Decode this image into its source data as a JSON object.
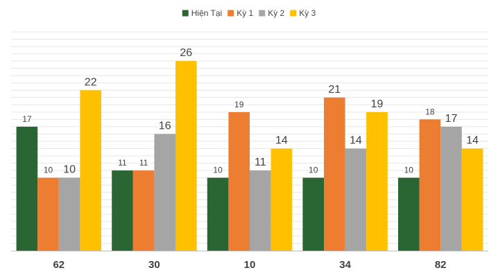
{
  "chart_data": {
    "type": "bar",
    "categories": [
      "62",
      "30",
      "10",
      "34",
      "82"
    ],
    "series": [
      {
        "name": "Hiện Tại",
        "color": "#2a6534",
        "values": [
          17,
          11,
          10,
          10,
          10
        ]
      },
      {
        "name": "Kỳ 1",
        "color": "#ed7d31",
        "values": [
          10,
          11,
          19,
          21,
          18
        ]
      },
      {
        "name": "Kỳ 2",
        "color": "#a5a5a5",
        "values": [
          10,
          16,
          11,
          14,
          17
        ]
      },
      {
        "name": "Kỳ 3",
        "color": "#ffc000",
        "values": [
          22,
          26,
          14,
          19,
          14
        ]
      }
    ],
    "ylim": [
      0,
      30
    ],
    "legend_position": "top-center",
    "grid": true,
    "axis_line_color": "#bfbfbf",
    "grid_color": "#e6e6e6"
  }
}
